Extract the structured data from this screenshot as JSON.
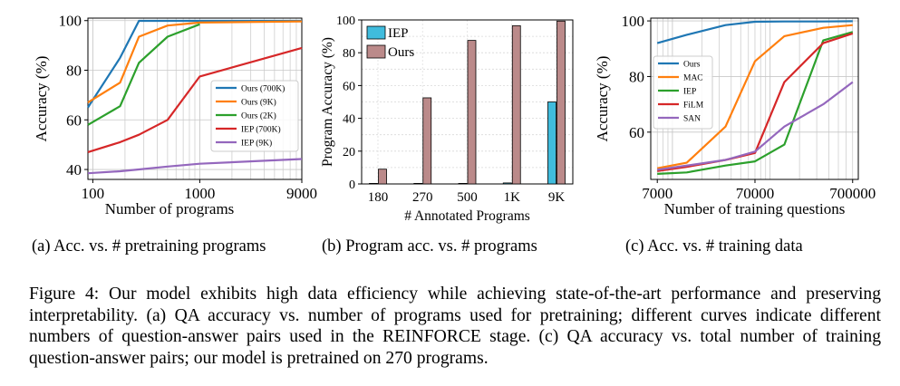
{
  "chart_data": [
    {
      "type": "line",
      "xscale": "log",
      "xticks": [
        "100",
        "1000",
        "9000"
      ],
      "yticks": [
        "40",
        "60",
        "80",
        "100"
      ],
      "xlim": [
        90,
        9000
      ],
      "ylim": [
        36,
        101
      ],
      "xlabel": "Number of programs",
      "ylabel": "Accuracy (%)",
      "grid": true,
      "legend_position": "center-right",
      "series": [
        {
          "name": "Ours (700K)",
          "color": "#1f77b4",
          "x": [
            90,
            180,
            270,
            500,
            1000,
            9000
          ],
          "y": [
            65,
            85,
            99.9,
            99.9,
            99.9,
            99.9
          ]
        },
        {
          "name": "Ours (9K)",
          "color": "#ff7f0e",
          "x": [
            90,
            180,
            270,
            500,
            1000,
            9000
          ],
          "y": [
            67,
            75,
            93.5,
            98,
            99.2,
            99.7
          ]
        },
        {
          "name": "Ours (2K)",
          "color": "#2ca02c",
          "x": [
            90,
            180,
            270,
            500,
            1000
          ],
          "y": [
            58,
            65.5,
            83,
            93.5,
            98.5
          ]
        },
        {
          "name": "IEP (700K)",
          "color": "#d62728",
          "x": [
            90,
            180,
            270,
            500,
            1000,
            9000
          ],
          "y": [
            47,
            51,
            54,
            60,
            77.5,
            89
          ]
        },
        {
          "name": "IEP (9K)",
          "color": "#9467bd",
          "x": [
            90,
            180,
            270,
            500,
            1000,
            9000
          ],
          "y": [
            38.5,
            39.3,
            40,
            41.2,
            42.3,
            44.2
          ]
        }
      ]
    },
    {
      "type": "bar",
      "categories": [
        "180",
        "270",
        "500",
        "1K",
        "9K"
      ],
      "yticks": [
        "0",
        "20",
        "40",
        "60",
        "80",
        "100"
      ],
      "ylim": [
        0,
        100
      ],
      "xlabel": "# Annotated Programs",
      "ylabel": "Program Accuracy (%)",
      "grid": true,
      "legend_position": "top-left",
      "series": [
        {
          "name": "IEP",
          "color": "#40bcdd",
          "values": [
            0,
            0,
            0.3,
            0.6,
            50
          ]
        },
        {
          "name": "Ours",
          "color": "#bb8a8a",
          "values": [
            9,
            52.5,
            87.5,
            96.5,
            99.3
          ]
        }
      ]
    },
    {
      "type": "line",
      "xscale": "log",
      "xticks": [
        "7000",
        "70000",
        "700000"
      ],
      "yticks": [
        "60",
        "80",
        "100"
      ],
      "xlim": [
        6000,
        800000
      ],
      "ylim": [
        43,
        101
      ],
      "xlabel": "Number of training questions",
      "ylabel": "Accuracy (%)",
      "grid": true,
      "legend_position": "center-left",
      "series": [
        {
          "name": "Ours",
          "color": "#1f77b4",
          "x": [
            7000,
            14000,
            35000,
            70000,
            140000,
            350000,
            700000
          ],
          "y": [
            92,
            95,
            98.5,
            99.7,
            99.8,
            99.8,
            99.9
          ]
        },
        {
          "name": "MAC",
          "color": "#ff7f0e",
          "x": [
            7000,
            14000,
            35000,
            70000,
            140000,
            350000,
            700000
          ],
          "y": [
            47,
            49,
            62,
            85.5,
            94.5,
            97.5,
            98.5
          ]
        },
        {
          "name": "IEP",
          "color": "#2ca02c",
          "x": [
            7000,
            14000,
            35000,
            70000,
            140000,
            350000,
            700000
          ],
          "y": [
            45,
            45.5,
            48,
            49.5,
            55.5,
            93,
            96
          ]
        },
        {
          "name": "FiLM",
          "color": "#d62728",
          "x": [
            7000,
            14000,
            35000,
            70000,
            140000,
            350000,
            700000
          ],
          "y": [
            46,
            47.5,
            50,
            52.5,
            78,
            92,
            95.5
          ]
        },
        {
          "name": "SAN",
          "color": "#9467bd",
          "x": [
            7000,
            14000,
            35000,
            70000,
            140000,
            350000,
            700000
          ],
          "y": [
            46.5,
            48,
            50,
            53,
            62,
            70,
            78
          ]
        }
      ]
    }
  ],
  "subcaptions": [
    "(a) Acc. vs. # pretraining programs",
    "(b) Program acc. vs. # programs",
    "(c) Acc. vs. # training data"
  ],
  "caption": "Figure 4: Our model exhibits high data efficiency while achieving state-of-the-art performance and preserving interpretability. (a) QA accuracy vs. number of programs used for pretraining; different curves indicate different numbers of question-answer pairs used in the REINFORCE stage. (c) QA accuracy vs. total number of training question-answer pairs; our model is pretrained on 270 programs."
}
